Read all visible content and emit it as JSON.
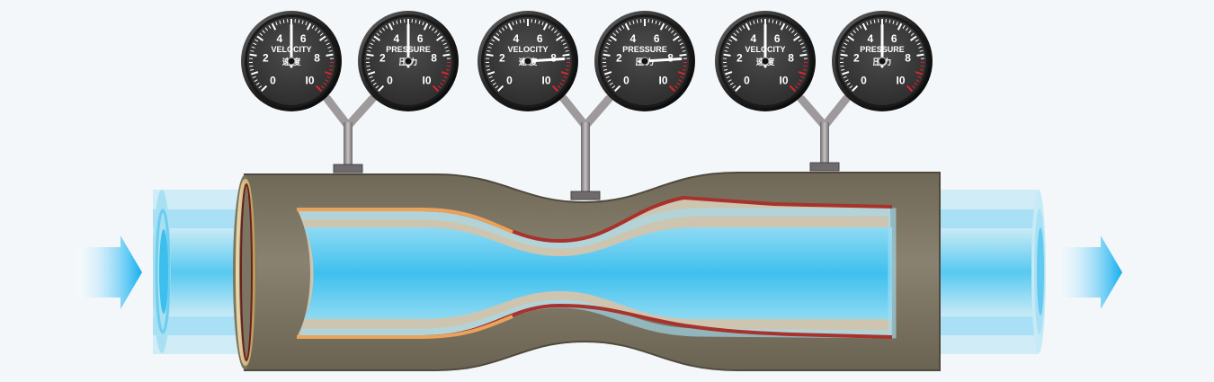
{
  "gauges": [
    {
      "title": "VELOCITY",
      "subtitle": "速 度",
      "value": 5,
      "scale": [
        "0",
        "2",
        "4",
        "6",
        "8",
        "I0"
      ]
    },
    {
      "title": "PRESSURE",
      "subtitle": "压 力",
      "value": 5,
      "scale": [
        "0",
        "2",
        "4",
        "6",
        "8",
        "I0"
      ]
    },
    {
      "title": "VELOCITY",
      "subtitle": "速 度",
      "value": 8.2,
      "scale": [
        "0",
        "2",
        "4",
        "6",
        "8",
        "I0"
      ]
    },
    {
      "title": "PRESSURE",
      "subtitle": "压 力",
      "value": 8.2,
      "scale": [
        "0",
        "2",
        "4",
        "6",
        "8",
        "I0"
      ]
    },
    {
      "title": "VELOCITY",
      "subtitle": "速 度",
      "value": 5,
      "scale": [
        "0",
        "2",
        "4",
        "6",
        "8",
        "I0"
      ]
    },
    {
      "title": "PRESSURE",
      "subtitle": "压 力",
      "value": 5,
      "scale": [
        "0",
        "2",
        "4",
        "6",
        "8",
        "I0"
      ]
    }
  ],
  "colors": {
    "water": "#4cc3ec",
    "flow_arrow": "#1fb2e9",
    "pipe_shell": "#7d7563",
    "pipe_inner": "#c9c1ad",
    "gauge_face": "#3b3b3b",
    "redline": "#e0242b"
  }
}
